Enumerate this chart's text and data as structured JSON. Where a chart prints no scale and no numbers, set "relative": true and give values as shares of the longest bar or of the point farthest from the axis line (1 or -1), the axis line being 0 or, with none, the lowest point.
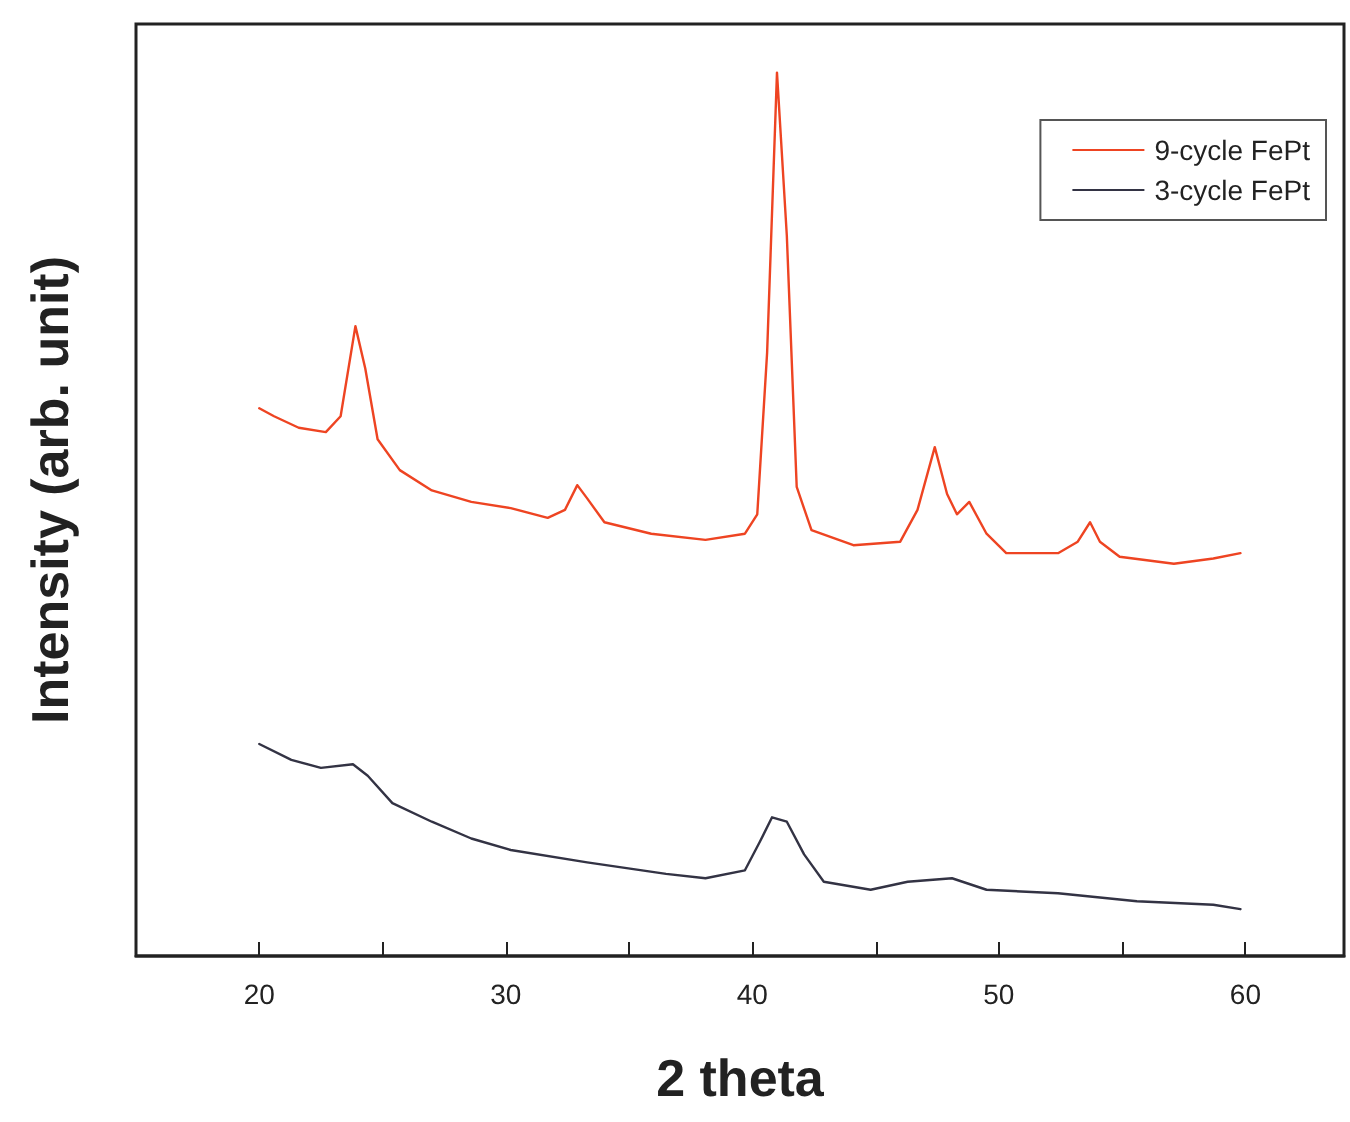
{
  "chart_data": {
    "type": "line",
    "xlabel": "2 theta",
    "ylabel": "Intensity (arb. unit)",
    "relative": true,
    "xlim": [
      15,
      64
    ],
    "xticks": [
      20,
      {
        "value": 25,
        "label": null
      },
      30,
      {
        "value": 35,
        "label": null
      },
      40,
      {
        "value": 45,
        "label": null
      },
      50,
      {
        "value": 55,
        "label": null
      },
      60
    ],
    "legend": "top right",
    "marker": "none",
    "line_style": "solid",
    "series": [
      {
        "name": "9-cycle FePt",
        "color": "#ee4422",
        "x": [
          20,
          20.6,
          21.6,
          22.7,
          23.3,
          23.9,
          24.3,
          24.8,
          25.7,
          27.0,
          28.6,
          30.2,
          31.7,
          32.4,
          32.9,
          33.3,
          34.0,
          35.9,
          38.1,
          39.7,
          40.2,
          40.6,
          41.0,
          41.4,
          41.8,
          42.4,
          44.1,
          46.0,
          46.7,
          47.4,
          47.9,
          48.3,
          48.8,
          49.5,
          50.3,
          52.4,
          53.2,
          53.7,
          54.1,
          54.9,
          57.1,
          58.7,
          59.8
        ],
        "values": [
          0.62,
          0.611,
          0.598,
          0.593,
          0.611,
          0.713,
          0.665,
          0.585,
          0.55,
          0.527,
          0.514,
          0.507,
          0.496,
          0.505,
          0.533,
          0.518,
          0.491,
          0.478,
          0.471,
          0.478,
          0.5,
          0.683,
          1,
          0.815,
          0.531,
          0.482,
          0.465,
          0.469,
          0.505,
          0.576,
          0.523,
          0.5,
          0.514,
          0.478,
          0.456,
          0.456,
          0.469,
          0.491,
          0.469,
          0.452,
          0.444,
          0.45,
          0.456
        ]
      },
      {
        "name": "3-cycle FePt",
        "color": "#333344",
        "x": [
          20,
          21.3,
          22.5,
          23.8,
          24.4,
          25.4,
          27.0,
          28.6,
          30.2,
          33.3,
          36.5,
          38.1,
          39.7,
          40.3,
          40.8,
          41.4,
          42.1,
          42.9,
          44.8,
          46.3,
          48.1,
          49.5,
          52.4,
          55.6,
          58.7,
          59.8
        ],
        "values": [
          0.24,
          0.222,
          0.213,
          0.217,
          0.204,
          0.173,
          0.152,
          0.133,
          0.12,
          0.106,
          0.093,
          0.088,
          0.097,
          0.129,
          0.157,
          0.152,
          0.115,
          0.084,
          0.075,
          0.084,
          0.088,
          0.075,
          0.071,
          0.062,
          0.058,
          0.053
        ]
      }
    ]
  }
}
